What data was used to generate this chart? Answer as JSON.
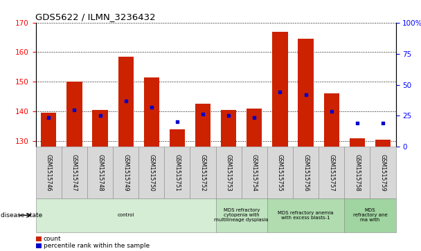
{
  "title": "GDS5622 / ILMN_3236432",
  "samples": [
    "GSM1515746",
    "GSM1515747",
    "GSM1515748",
    "GSM1515749",
    "GSM1515750",
    "GSM1515751",
    "GSM1515752",
    "GSM1515753",
    "GSM1515754",
    "GSM1515755",
    "GSM1515756",
    "GSM1515757",
    "GSM1515758",
    "GSM1515759"
  ],
  "count_values": [
    139.5,
    150.0,
    140.5,
    158.5,
    151.5,
    134.0,
    142.5,
    140.5,
    141.0,
    167.0,
    164.5,
    146.0,
    131.0,
    130.5
  ],
  "percentile_values": [
    138.0,
    140.5,
    138.5,
    143.5,
    141.5,
    136.5,
    139.0,
    138.5,
    138.0,
    146.5,
    145.5,
    140.0,
    136.0,
    136.0
  ],
  "ymin": 128,
  "ymax": 170,
  "yticks_left": [
    130,
    140,
    150,
    160,
    170
  ],
  "yticks_right_vals": [
    0,
    25,
    50,
    75,
    100
  ],
  "yticks_right_labels": [
    "0",
    "25",
    "50",
    "75",
    "100%"
  ],
  "bar_color": "#cc2200",
  "dot_color": "#0000cc",
  "disease_groups": [
    {
      "label": "control",
      "start": 0,
      "end": 7,
      "color": "#d4edd4"
    },
    {
      "label": "MDS refractory\ncytopenia with\nmultilineage dysplasia",
      "start": 7,
      "end": 9,
      "color": "#c0e4c0"
    },
    {
      "label": "MDS refractory anemia\nwith excess blasts-1",
      "start": 9,
      "end": 12,
      "color": "#b0dcb0"
    },
    {
      "label": "MDS\nrefractory ane\nma with",
      "start": 12,
      "end": 14,
      "color": "#a0d4a0"
    }
  ],
  "bar_width": 0.6,
  "fig_width": 6.08,
  "fig_height": 3.63,
  "dpi": 100
}
